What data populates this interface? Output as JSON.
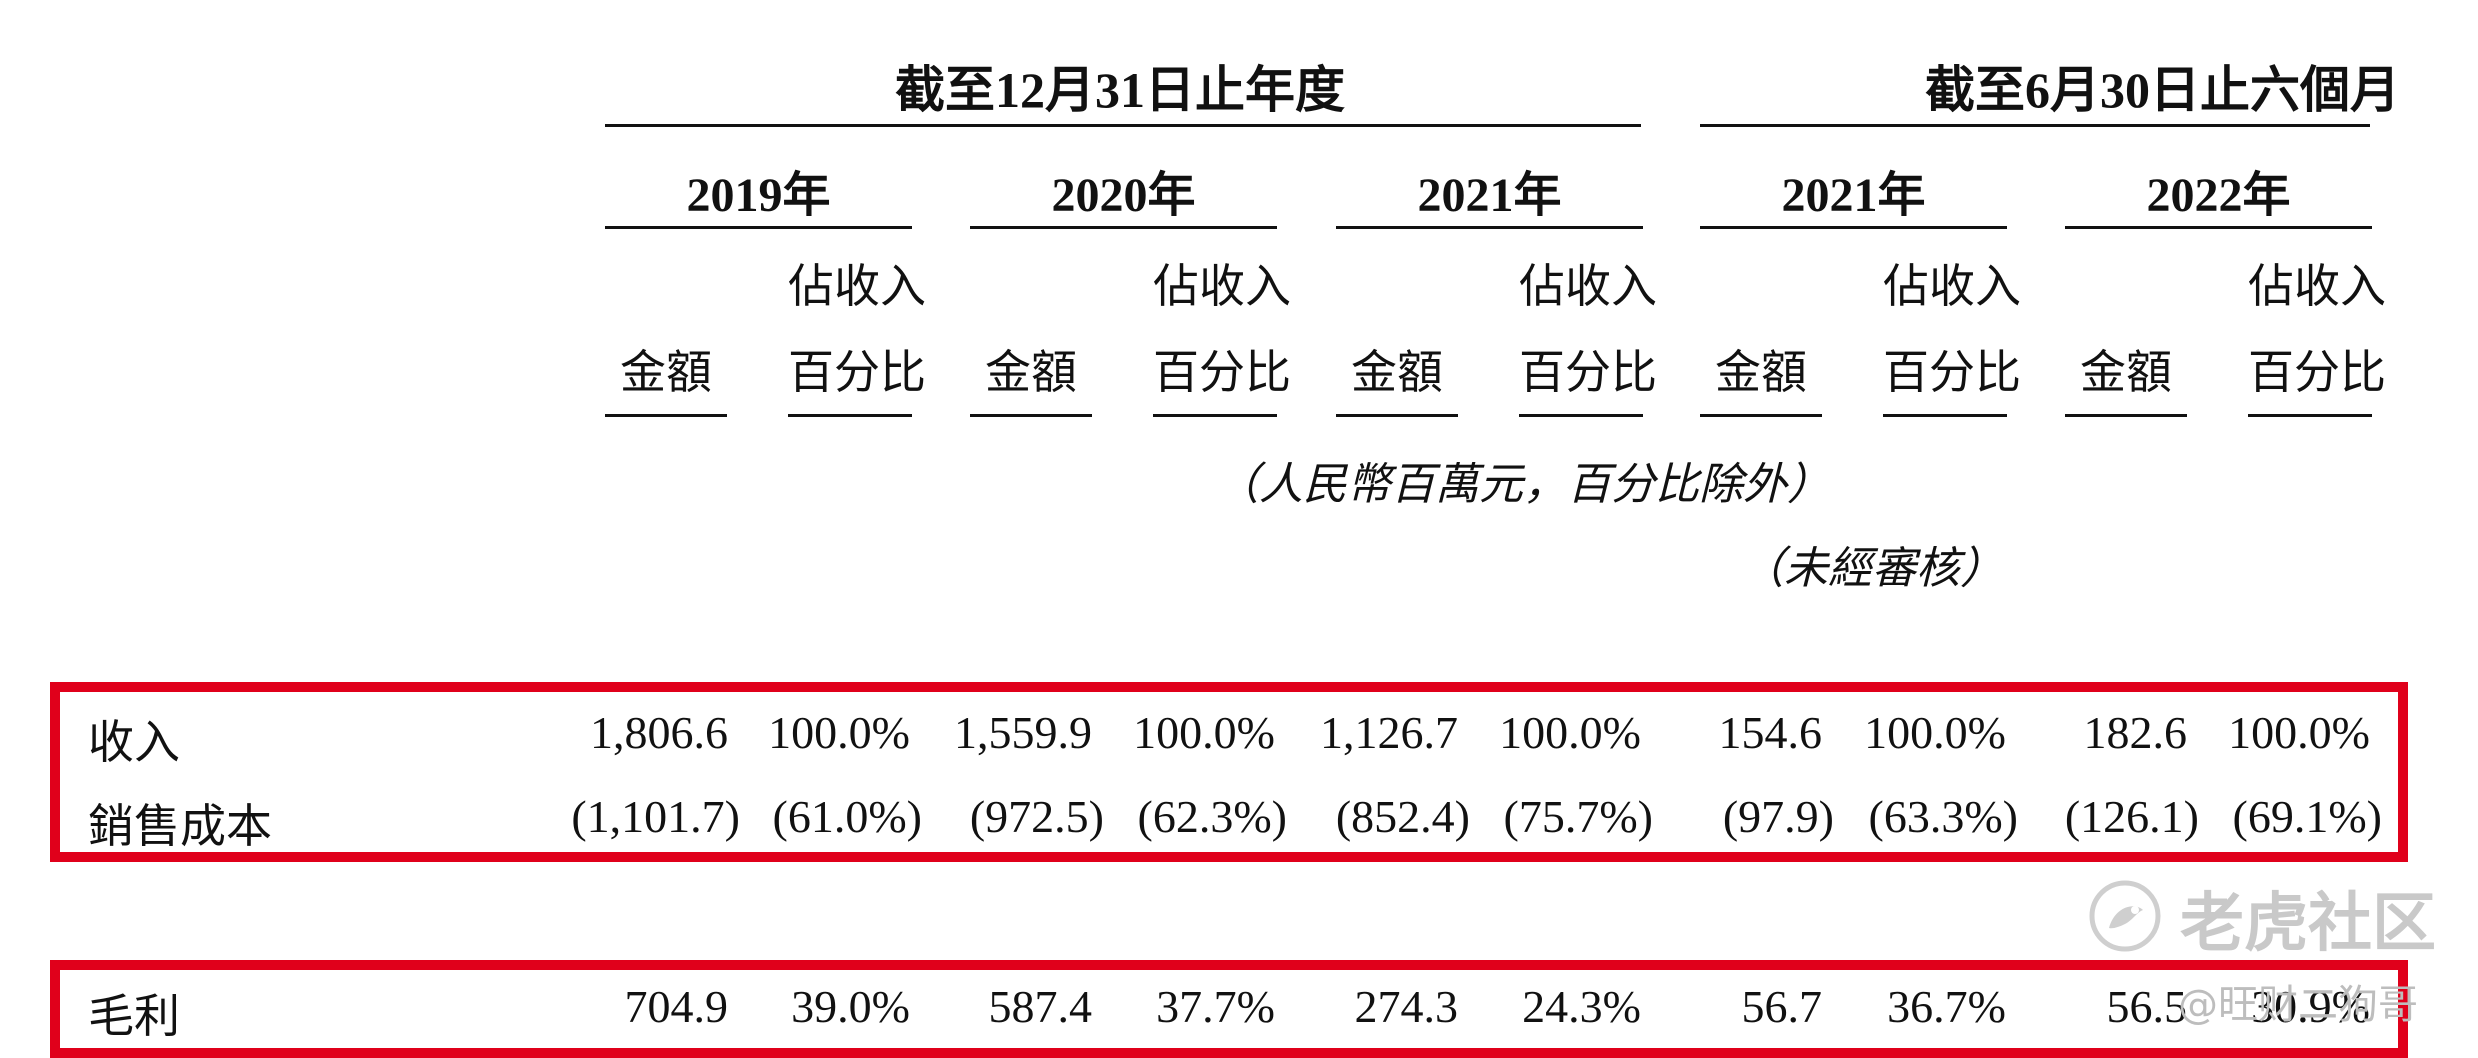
{
  "header": {
    "group_fy": "截至12月31日止年度",
    "group_half": "截至6月30日止六個月",
    "years": [
      "2019年",
      "2020年",
      "2021年",
      "2021年",
      "2022年"
    ],
    "amount_label": "金額",
    "pct_label_line1": "佔收入",
    "pct_label_line2": "百分比"
  },
  "notes": {
    "unit": "（人民幣百萬元，百分比除外）",
    "unaudited": "（未經審核）"
  },
  "rows": [
    {
      "label": "收入",
      "values": [
        "1,806.6",
        "100.0%",
        "1,559.9",
        "100.0%",
        "1,126.7",
        "100.0%",
        "154.6",
        "100.0%",
        "182.6",
        "100.0%"
      ]
    },
    {
      "label": "銷售成本",
      "values": [
        "(1,101.7)",
        "(61.0%)",
        "(972.5)",
        "(62.3%)",
        "(852.4)",
        "(75.7%)",
        "(97.9)",
        "(63.3%)",
        "(126.1)",
        "(69.1%)"
      ]
    },
    {
      "label": "毛利",
      "values": [
        "704.9",
        "39.0%",
        "587.4",
        "37.7%",
        "274.3",
        "24.3%",
        "56.7",
        "36.7%",
        "56.5",
        "30.9%"
      ]
    }
  ],
  "watermark": {
    "brand": "老虎社区",
    "handle": "@旺财二狗哥"
  },
  "colors": {
    "highlight_box": "#e0001b",
    "text": "#111111"
  }
}
